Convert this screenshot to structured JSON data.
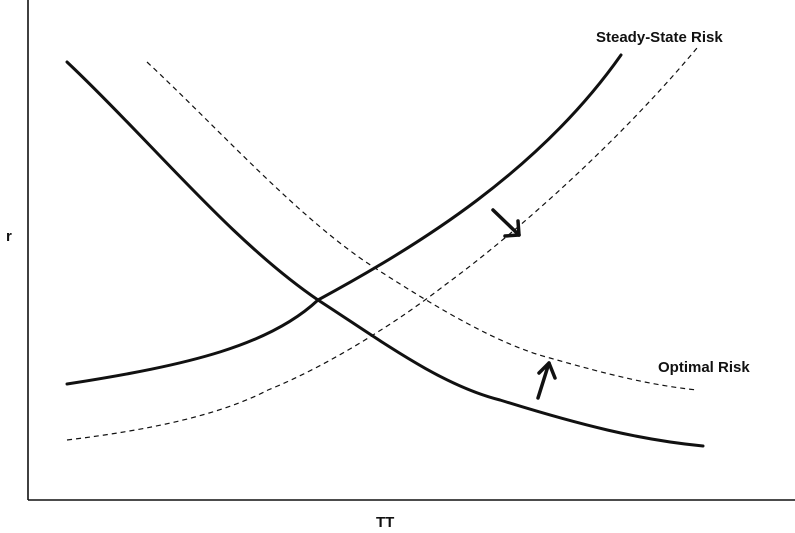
{
  "labels": {
    "y_axis": "r",
    "x_axis": "TT",
    "steady_state_curve": "Steady-State Risk",
    "optimal_curve": "Optimal Risk"
  },
  "colors": {
    "ink": "#111111",
    "background": "#ffffff"
  },
  "curves": [
    {
      "id": "steady-state-original",
      "style": "solid",
      "direction": "increasing"
    },
    {
      "id": "steady-state-shifted",
      "style": "dashed",
      "direction": "increasing"
    },
    {
      "id": "optimal-original",
      "style": "solid",
      "direction": "decreasing"
    },
    {
      "id": "optimal-shifted",
      "style": "dashed",
      "direction": "decreasing"
    }
  ],
  "shift_arrows": [
    {
      "curve": "steady-state",
      "direction": "down-right"
    },
    {
      "curve": "optimal",
      "direction": "up"
    }
  ]
}
